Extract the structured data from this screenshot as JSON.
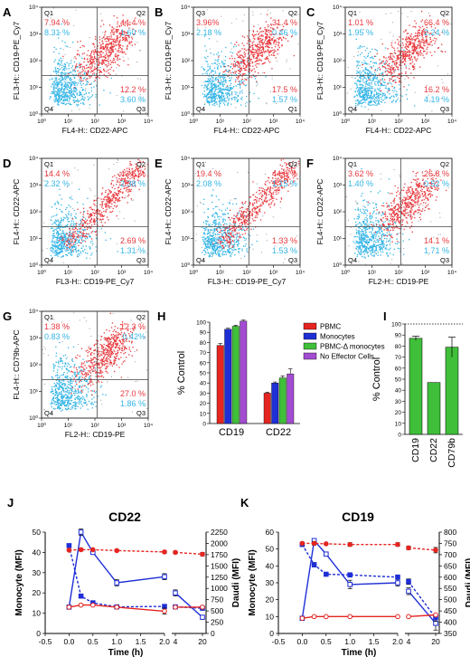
{
  "colors": {
    "red": "#e8383d",
    "cyan": "#33b5e6",
    "pbmc": "#e52521",
    "monocytes": "#1f2fd6",
    "pbmc_delta": "#3fbf3a",
    "no_effector": "#a34bd1",
    "green": "#3fbf3a",
    "blue_line": "#1f2fd6",
    "red_line": "#e52521"
  },
  "flow_panels": [
    {
      "letter": "A",
      "xlabel": "FL4-H:: CD22-APC",
      "ylabel": "FL3-H:: CD19-PE_Cy7",
      "quads": [
        "Q1",
        "Q2",
        "Q3",
        "Q4"
      ],
      "q1": {
        "red": "7.94 %",
        "cyan": "8.31 %"
      },
      "q2": {
        "red": "44.4 %",
        "cyan": "1.60 %"
      },
      "q3": {
        "red": "12.2 %",
        "cyan": "3.60 %"
      },
      "shape": "diag"
    },
    {
      "letter": "B",
      "xlabel": "FL4-H:: CD22-APC",
      "ylabel": "FL3-H:: CD19-PE_Cy7",
      "quads": [
        "Q3",
        "Q2",
        "Q1",
        "Q4"
      ],
      "q1": {
        "red": "3.96%",
        "cyan": "2.18 %"
      },
      "q2": {
        "red": "31.4 %",
        "cyan": "0.46 %"
      },
      "q3": {
        "red": "17.5 %",
        "cyan": "1.57 %"
      },
      "shape": "diag"
    },
    {
      "letter": "C",
      "xlabel": "FL4-H:: CD22-APC",
      "ylabel": "FL3-H:: CD19-PE_Cy7",
      "quads": [
        "Q1",
        "Q2",
        "Q3",
        "Q4"
      ],
      "q1": {
        "red": "1.01 %",
        "cyan": "1.95 %"
      },
      "q2": {
        "red": "66.4 %",
        "cyan": "2.24 %"
      },
      "q3": {
        "red": "16.2 %",
        "cyan": "4.19 %"
      },
      "shape": "diag"
    },
    {
      "letter": "D",
      "xlabel": "FL3-H:: CD19-PE_Cy7",
      "ylabel": "FL4-H:: CD22-APC",
      "quads": [
        "Q1",
        "Q2",
        "Q3",
        "Q4"
      ],
      "q1": {
        "red": "14.4 %",
        "cyan": "2.32 %"
      },
      "q2": {
        "red": "43.6 %",
        "cyan": "2.38 %"
      },
      "q3": {
        "red": "2.69 %",
        "cyan": "1.31 %"
      },
      "shape": "line"
    },
    {
      "letter": "E",
      "xlabel": "FL3-H:: CD19-PE_Cy7",
      "ylabel": "FL4-H:: CD22-APC",
      "quads": [
        "Q1",
        "Q2",
        "Q3",
        "Q4"
      ],
      "q1": {
        "red": "19.4 %",
        "cyan": "2.08 %"
      },
      "q2": {
        "red": "44.6 %",
        "cyan": "1.15 %"
      },
      "q3": {
        "red": "1.33 %",
        "cyan": "1.53 %"
      },
      "shape": "line"
    },
    {
      "letter": "F",
      "xlabel": "FL2-H:: CD19-PE",
      "ylabel": "FL4-H:: CD22-APC",
      "quads": [
        "Q1",
        "Q2",
        "Q3",
        "Q4"
      ],
      "q1": {
        "red": "3.62 %",
        "cyan": "1.40 %"
      },
      "q2": {
        "red": "26.8 %",
        "cyan": "0.52 %"
      },
      "q3": {
        "red": "14.1 %",
        "cyan": "1.71 %"
      },
      "shape": "diag"
    },
    {
      "letter": "G",
      "xlabel": "FL2-H:: CD19-PE",
      "ylabel": "FL4-H:: CD79b-APC",
      "quads": [
        "Q1",
        "Q2",
        "Q3",
        "Q4"
      ],
      "q1": {
        "red": "1.38 %",
        "cyan": "0.83 %"
      },
      "q2": {
        "red": "12.3 %",
        "cyan": "0.42%"
      },
      "q3": {
        "red": "27.0 %",
        "cyan": "1.86 %"
      },
      "shape": "diag"
    }
  ],
  "axis_ticks": [
    "10⁰",
    "10¹",
    "10²",
    "10³",
    "10⁴"
  ],
  "chart_data": [
    {
      "type": "bar",
      "panel": "H",
      "ylabel": "% Control",
      "ylim": [
        0,
        100
      ],
      "yticks": [
        0,
        10,
        20,
        30,
        40,
        50,
        60,
        70,
        80,
        90,
        100
      ],
      "categories": [
        "CD19",
        "CD22"
      ],
      "series": [
        {
          "name": "PBMC",
          "values": [
            77,
            30
          ]
        },
        {
          "name": "Monocytes",
          "values": [
            93,
            40
          ]
        },
        {
          "name": "PBMC-Δ monocytes",
          "values": [
            96,
            45
          ]
        },
        {
          "name": "No Effector Cells",
          "values": [
            101,
            49
          ]
        }
      ],
      "errors": [
        [
          2,
          1
        ],
        [
          1,
          1
        ],
        [
          1,
          2
        ],
        [
          1,
          5
        ]
      ]
    },
    {
      "type": "bar",
      "panel": "I",
      "ylabel": "% Control",
      "ylim": [
        0,
        100
      ],
      "yticks": [
        0,
        10,
        20,
        30,
        40,
        50,
        60,
        70,
        80,
        90,
        100
      ],
      "categories": [
        "CD19",
        "CD22",
        "CD79b"
      ],
      "values": [
        87,
        47,
        79
      ],
      "errors": [
        2,
        0,
        9
      ],
      "reference_line": 100
    },
    {
      "type": "line",
      "panel": "J",
      "title": "CD22",
      "xlabel": "Time (h)",
      "ylabel_left": "Monocyte (MFI)",
      "ylabel_right": "Daudi (MFI)",
      "ylim_left": [
        0,
        50
      ],
      "yticks_left": [
        0,
        10,
        20,
        30,
        40,
        50
      ],
      "ylim_right": [
        0,
        2250
      ],
      "yticks_right": [
        0,
        250,
        500,
        750,
        1000,
        1250,
        1500,
        1750,
        2000,
        2250
      ],
      "xticks_left": [
        "-0.5",
        "0.0",
        "0.5",
        "1.0",
        "1.5",
        "2.0"
      ],
      "xticks_right": [
        "4",
        "20"
      ],
      "x": [
        0,
        0.25,
        0.5,
        1,
        2,
        4,
        20
      ],
      "series": [
        {
          "color": "blue",
          "style": "solid",
          "axis": "left",
          "marker": "square-open",
          "values": [
            13,
            50,
            40,
            25,
            28,
            20,
            8
          ],
          "errors": [
            0,
            1.5,
            0,
            1.5,
            1.5,
            1.5,
            1
          ]
        },
        {
          "color": "blue",
          "style": "dashed",
          "axis": "right",
          "marker": "square",
          "values": [
            1950,
            830,
            680,
            590,
            600,
            590,
            560
          ],
          "errors": [
            0,
            40,
            0,
            40,
            40,
            40,
            30
          ]
        },
        {
          "color": "red",
          "style": "solid",
          "axis": "left",
          "marker": "circle-open",
          "values": [
            13,
            14,
            14,
            13,
            11,
            13,
            13
          ],
          "errors": [
            0,
            0.5,
            0,
            0.5,
            1.5,
            0.5,
            0.5
          ]
        },
        {
          "color": "red",
          "style": "dashed",
          "axis": "right",
          "marker": "circle",
          "values": [
            1850,
            1860,
            1860,
            1840,
            1810,
            1800,
            1760
          ],
          "errors": [
            0,
            30,
            0,
            20,
            30,
            30,
            40
          ]
        }
      ]
    },
    {
      "type": "line",
      "panel": "K",
      "title": "CD19",
      "xlabel": "Time (h)",
      "ylabel_left": "Monocyte (MFI)",
      "ylabel_right": "Daudi (MFI)",
      "ylim_left": [
        0,
        60
      ],
      "yticks_left": [
        0,
        10,
        20,
        30,
        40,
        50,
        60
      ],
      "ylim_right": [
        350,
        800
      ],
      "yticks_right": [
        350,
        400,
        450,
        500,
        550,
        600,
        650,
        700,
        750,
        800
      ],
      "xticks_left": [
        "-0.5",
        "0.0",
        "0.5",
        "1.0",
        "1.5",
        "2.0"
      ],
      "xticks_right": [
        "4",
        "20"
      ],
      "x": [
        0,
        0.25,
        0.5,
        1,
        2,
        4,
        20
      ],
      "series": [
        {
          "color": "blue",
          "style": "solid",
          "axis": "left",
          "marker": "square-open",
          "values": [
            9,
            55,
            47,
            29,
            30,
            25,
            6
          ],
          "errors": [
            0,
            1,
            0,
            2.5,
            2,
            2,
            4
          ]
        },
        {
          "color": "blue",
          "style": "dashed",
          "axis": "right",
          "marker": "square",
          "values": [
            745,
            655,
            613,
            610,
            600,
            580,
            420
          ],
          "errors": [
            0,
            10,
            0,
            8,
            10,
            12,
            15
          ]
        },
        {
          "color": "red",
          "style": "solid",
          "axis": "left",
          "marker": "circle-open",
          "values": [
            9,
            10,
            10,
            10,
            10,
            10,
            11
          ],
          "errors": [
            0,
            0.5,
            0,
            0.5,
            0.5,
            0.5,
            0.5
          ]
        },
        {
          "color": "red",
          "style": "dashed",
          "axis": "right",
          "marker": "circle",
          "values": [
            750,
            750,
            748,
            745,
            745,
            730,
            720
          ],
          "errors": [
            0,
            8,
            0,
            8,
            8,
            8,
            12
          ]
        }
      ]
    }
  ]
}
